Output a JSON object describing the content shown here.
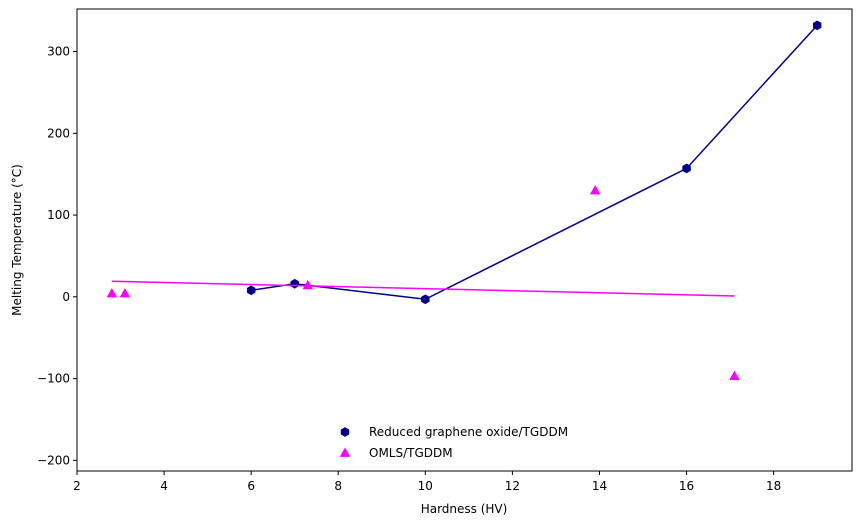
{
  "chart_data": {
    "type": "scatter",
    "xlabel": "Hardness (HV)",
    "ylabel": "Melting Temperature (°C)",
    "xlim": [
      2.0,
      19.8
    ],
    "ylim": [
      -213,
      352
    ],
    "xticks": [
      2,
      4,
      6,
      8,
      10,
      12,
      14,
      16,
      18
    ],
    "yticks": [
      -200,
      -100,
      0,
      100,
      200,
      300
    ],
    "grid": false,
    "legend_position": "bottom-center",
    "series": [
      {
        "name": "Reduced graphene oxide/TGDDM",
        "marker": "hexagon",
        "color": "#00008b",
        "x": [
          6.0,
          7.0,
          10.0,
          16.0,
          19.0
        ],
        "y": [
          8,
          16,
          -3,
          157,
          332
        ],
        "connect_line": true
      },
      {
        "name": "OMLS/TGDDM",
        "marker": "triangle",
        "color": "#ff00ff",
        "x": [
          2.8,
          3.1,
          7.3,
          13.9,
          17.1
        ],
        "y": [
          4,
          4,
          14,
          130,
          -97
        ],
        "trend_line": {
          "x": [
            2.8,
            17.1
          ],
          "y": [
            19,
            1
          ]
        }
      }
    ]
  }
}
